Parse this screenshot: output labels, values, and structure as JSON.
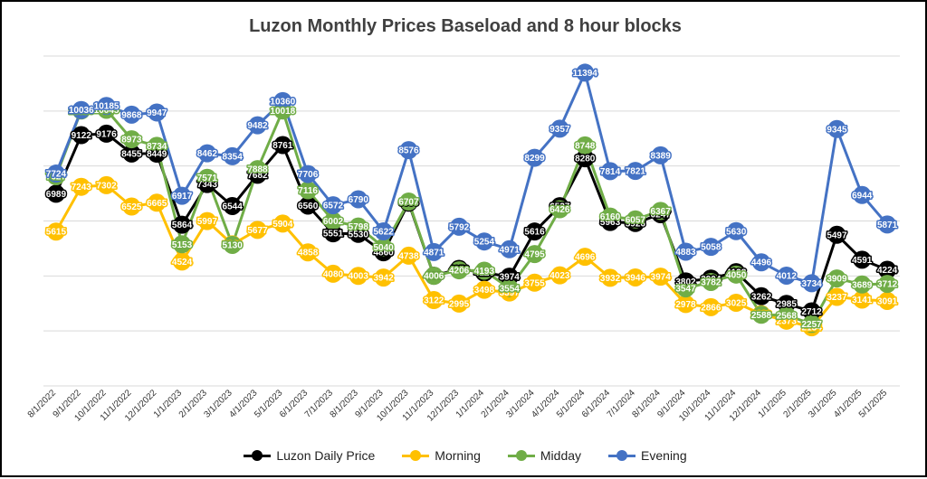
{
  "chart_data": {
    "type": "line",
    "title": "Luzon Monthly Prices Baseload and 8 hour blocks",
    "xlabel": "",
    "ylabel": "",
    "categories": [
      "8/1/2022",
      "9/1/2022",
      "10/1/2022",
      "11/1/2022",
      "12/1/2022",
      "1/1/2023",
      "2/1/2023",
      "3/1/2023",
      "4/1/2023",
      "5/1/2023",
      "6/1/2023",
      "7/1/2023",
      "8/1/2023",
      "9/1/2023",
      "10/1/2023",
      "11/1/2023",
      "12/1/2023",
      "1/1/2024",
      "2/1/2024",
      "3/1/2024",
      "4/1/2024",
      "5/1/2024",
      "6/1/2024",
      "7/1/2024",
      "8/1/2024",
      "9/1/2024",
      "10/1/2024",
      "11/1/2024",
      "12/1/2024",
      "1/1/2025",
      "2/1/2025",
      "3/1/2025",
      "4/1/2025",
      "5/1/2025"
    ],
    "ylim": [
      0,
      12000
    ],
    "grid": true,
    "legend_position": "bottom",
    "series": [
      {
        "name": "Luzon Daily Price",
        "color": "#000000",
        "values": [
          6989,
          9122,
          9176,
          8455,
          8449,
          5864,
          7343,
          6544,
          7682,
          8761,
          6560,
          5551,
          5530,
          4860,
          6666,
          4006,
          4256,
          4120,
          3974,
          5616,
          6537,
          8280,
          5963,
          5926,
          6247,
          3802,
          3904,
          4138,
          3262,
          2985,
          2712,
          5497,
          4591,
          4224
        ]
      },
      {
        "name": "Morning",
        "color": "#FFC000",
        "values": [
          5615,
          7243,
          7302,
          6525,
          6665,
          4524,
          5997,
          5149,
          5677,
          5904,
          4858,
          4080,
          4003,
          3942,
          4738,
          3122,
          2995,
          3498,
          3397,
          3755,
          4023,
          4696,
          3932,
          3946,
          3974,
          2978,
          2866,
          3025,
          2608,
          2373,
          2134,
          3237,
          3141,
          3091
        ]
      },
      {
        "name": "Midday",
        "color": "#70AD47",
        "values": [
          7627,
          10018,
          10045,
          8973,
          8734,
          5153,
          7571,
          5130,
          7888,
          10018,
          7116,
          6002,
          5798,
          5040,
          6707,
          4006,
          4206,
          4193,
          3554,
          4795,
          6426,
          8748,
          6160,
          6057,
          6367,
          3547,
          3782,
          4050,
          2588,
          2568,
          2257,
          3909,
          3689,
          3712
        ]
      },
      {
        "name": "Evening",
        "color": "#4472C4",
        "values": [
          7724,
          10036,
          10185,
          9868,
          9947,
          6917,
          8462,
          8354,
          9482,
          10360,
          7706,
          6572,
          6790,
          5622,
          8576,
          4871,
          5792,
          5254,
          4971,
          8299,
          9357,
          11394,
          7814,
          7821,
          8389,
          4883,
          5058,
          5630,
          4496,
          4012,
          3734,
          9345,
          6944,
          5871
        ]
      }
    ]
  }
}
